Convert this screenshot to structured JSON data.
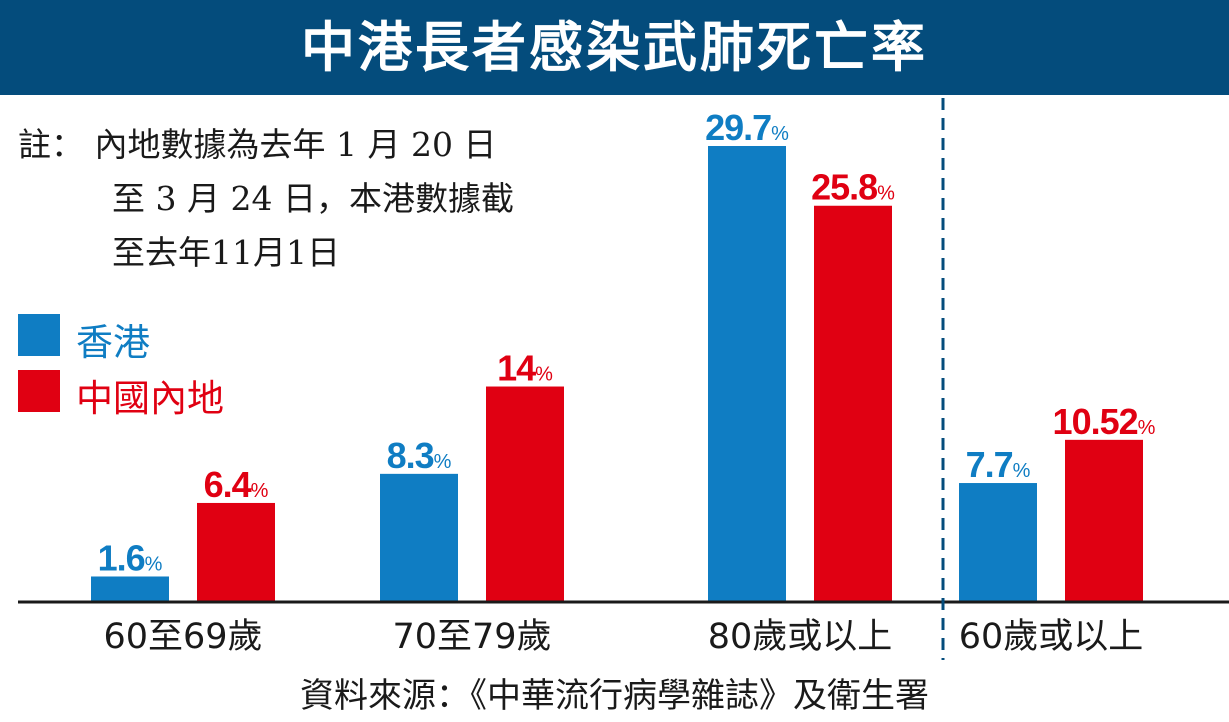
{
  "colors": {
    "header_bg": "#044c7c",
    "hong_kong": "#0f7dc3",
    "mainland": "#e00012",
    "text": "#1a1a1a",
    "divider": "#044c7c"
  },
  "note": {
    "lines": [
      "註：  內地數據為去年 1 月 20 日",
      "至 3 月 24 日，本港數據截",
      "至去年11月1日"
    ]
  },
  "source": "資料來源：《中華流行病學雜誌》及衛生署",
  "chart_data": {
    "type": "bar",
    "title": "中港長者感染武肺死亡率",
    "categories": [
      "60至69歲",
      "70至79歲",
      "80歲或以上",
      "60歲或以上"
    ],
    "series": [
      {
        "name": "香港",
        "values": [
          1.6,
          8.3,
          29.7,
          7.7
        ],
        "labels": [
          "1.6",
          "8.3",
          "29.7",
          "7.7"
        ],
        "color": "#0f7dc3"
      },
      {
        "name": "中國內地",
        "values": [
          6.4,
          14,
          25.8,
          10.52
        ],
        "labels": [
          "6.4",
          "14",
          "25.8",
          "10.52"
        ],
        "color": "#e00012"
      }
    ],
    "unit": "%",
    "ylim": [
      0,
      29.7
    ],
    "legend": "left",
    "grid": false,
    "divider_before_index": 3
  }
}
